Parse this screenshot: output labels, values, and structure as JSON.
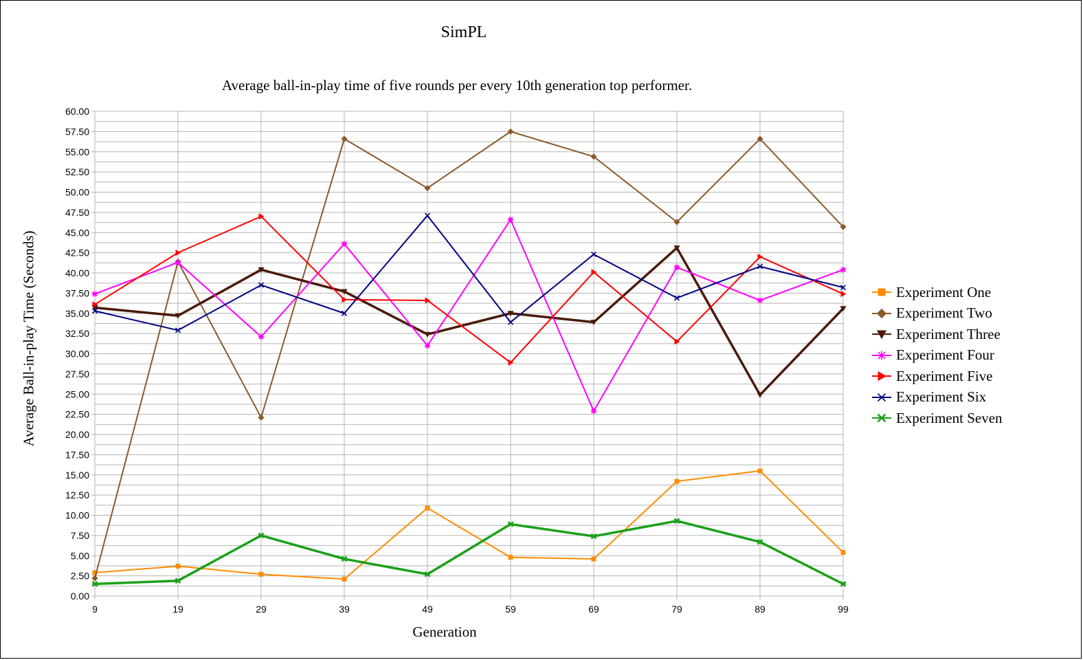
{
  "chart_data": {
    "type": "line",
    "title": "SimPL",
    "subtitle": "Average ball-in-play time of five rounds per every 10th generation top performer.",
    "xlabel": "Generation",
    "ylabel": "Average Ball-in-play Time (Seconds)",
    "x": [
      9,
      19,
      29,
      39,
      49,
      59,
      69,
      79,
      89,
      99
    ],
    "x_tick_labels": [
      "9",
      "19",
      "29",
      "39",
      "49",
      "59",
      "69",
      "79",
      "89",
      "99"
    ],
    "ylim": [
      0,
      60
    ],
    "y_tick_step": 2.5,
    "y_tick_labels": [
      "0.00",
      "2.50",
      "5.00",
      "7.50",
      "10.00",
      "12.50",
      "15.00",
      "17.50",
      "20.00",
      "22.50",
      "25.00",
      "27.50",
      "30.00",
      "32.50",
      "35.00",
      "37.50",
      "40.00",
      "42.50",
      "45.00",
      "47.50",
      "50.00",
      "52.50",
      "55.00",
      "57.50",
      "60.00"
    ],
    "grid": true,
    "legend_position": "right",
    "series": [
      {
        "name": "Experiment One",
        "color": "#ff8c00",
        "marker": "square",
        "width": 2,
        "values": [
          2.9,
          3.7,
          2.7,
          2.1,
          10.9,
          4.8,
          4.6,
          14.2,
          15.5,
          5.4
        ]
      },
      {
        "name": "Experiment Two",
        "color": "#8b5a2b",
        "marker": "diamond",
        "width": 2,
        "values": [
          2.2,
          41.4,
          22.1,
          56.6,
          50.5,
          57.5,
          54.4,
          46.3,
          56.6,
          45.7
        ]
      },
      {
        "name": "Experiment Three",
        "color": "#4a1a0a",
        "marker": "triangle-down",
        "width": 3.5,
        "values": [
          35.7,
          34.7,
          40.4,
          37.7,
          32.4,
          35.0,
          33.9,
          43.1,
          24.9,
          35.6
        ]
      },
      {
        "name": "Experiment Four",
        "color": "#ff00ff",
        "marker": "asterisk",
        "width": 2,
        "values": [
          37.4,
          41.3,
          32.1,
          43.6,
          31.0,
          46.6,
          22.9,
          40.7,
          36.6,
          40.4
        ]
      },
      {
        "name": "Experiment Five",
        "color": "#ff0000",
        "marker": "triangle-right",
        "width": 2,
        "values": [
          36.1,
          42.5,
          47.0,
          36.7,
          36.6,
          28.9,
          40.1,
          31.5,
          42.0,
          37.4
        ]
      },
      {
        "name": "Experiment Six",
        "color": "#000080",
        "marker": "x",
        "width": 2,
        "values": [
          35.3,
          32.9,
          38.5,
          35.0,
          47.1,
          33.9,
          42.3,
          36.9,
          40.8,
          38.2
        ]
      },
      {
        "name": "Experiment Seven",
        "color": "#1aa01a",
        "marker": "x-bold",
        "width": 3.5,
        "values": [
          1.5,
          1.9,
          7.5,
          4.6,
          2.7,
          8.9,
          7.4,
          9.3,
          6.7,
          1.5
        ]
      }
    ]
  }
}
